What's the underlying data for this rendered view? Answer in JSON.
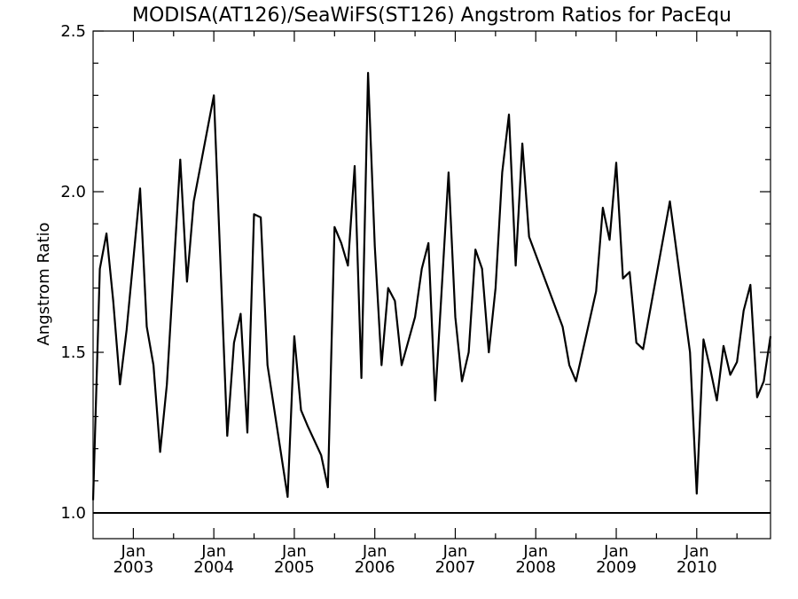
{
  "chart_data": {
    "type": "line",
    "title": "MODISA(AT126)/SeaWiFS(ST126)  Angstrom Ratios for PacEqu",
    "xlabel": "",
    "ylabel": "Angstrom Ratio",
    "ylim": [
      0.92,
      2.5
    ],
    "xlim": [
      "2002-07",
      "2010-12"
    ],
    "grid": false,
    "y_ticks": [
      "1.0",
      "1.5",
      "2.0",
      "2.5"
    ],
    "x_ticks": [
      {
        "month": "Jan",
        "year": "2003",
        "date": "2003-01"
      },
      {
        "month": "Jan",
        "year": "2004",
        "date": "2004-01"
      },
      {
        "month": "Jan",
        "year": "2005",
        "date": "2005-01"
      },
      {
        "month": "Jan",
        "year": "2006",
        "date": "2006-01"
      },
      {
        "month": "Jan",
        "year": "2007",
        "date": "2007-01"
      },
      {
        "month": "Jan",
        "year": "2008",
        "date": "2008-01"
      },
      {
        "month": "Jan",
        "year": "2009",
        "date": "2009-01"
      },
      {
        "month": "Jan",
        "year": "2010",
        "date": "2010-01"
      }
    ],
    "reference_line": {
      "y": 1.0
    },
    "series": [
      {
        "points": [
          [
            "2002-07",
            1.04
          ],
          [
            "2002-08",
            1.76
          ],
          [
            "2002-09",
            1.87
          ],
          [
            "2002-10",
            1.66
          ],
          [
            "2002-11",
            1.4
          ],
          [
            "2002-12",
            1.57
          ],
          [
            "2003-02",
            2.01
          ],
          [
            "2003-03",
            1.58
          ],
          [
            "2003-04",
            1.46
          ],
          [
            "2003-05",
            1.19
          ],
          [
            "2003-06",
            1.4
          ],
          [
            "2003-08",
            2.1
          ],
          [
            "2003-09",
            1.72
          ],
          [
            "2003-10",
            1.97
          ],
          [
            "2004-01",
            2.3
          ],
          [
            "2004-03",
            1.24
          ],
          [
            "2004-04",
            1.53
          ],
          [
            "2004-05",
            1.62
          ],
          [
            "2004-06",
            1.25
          ],
          [
            "2004-07",
            1.93
          ],
          [
            "2004-08",
            1.92
          ],
          [
            "2004-09",
            1.46
          ],
          [
            "2004-12",
            1.05
          ],
          [
            "2005-01",
            1.55
          ],
          [
            "2005-02",
            1.32
          ],
          [
            "2005-03",
            1.27
          ],
          [
            "2005-05",
            1.18
          ],
          [
            "2005-06",
            1.08
          ],
          [
            "2005-07",
            1.89
          ],
          [
            "2005-08",
            1.84
          ],
          [
            "2005-09",
            1.77
          ],
          [
            "2005-10",
            2.08
          ],
          [
            "2005-11",
            1.42
          ],
          [
            "2005-12",
            2.37
          ],
          [
            "2006-01",
            1.83
          ],
          [
            "2006-02",
            1.46
          ],
          [
            "2006-03",
            1.7
          ],
          [
            "2006-04",
            1.66
          ],
          [
            "2006-05",
            1.46
          ],
          [
            "2006-07",
            1.61
          ],
          [
            "2006-08",
            1.76
          ],
          [
            "2006-09",
            1.84
          ],
          [
            "2006-10",
            1.35
          ],
          [
            "2006-12",
            2.06
          ],
          [
            "2007-01",
            1.61
          ],
          [
            "2007-02",
            1.41
          ],
          [
            "2007-03",
            1.5
          ],
          [
            "2007-04",
            1.82
          ],
          [
            "2007-05",
            1.76
          ],
          [
            "2007-06",
            1.5
          ],
          [
            "2007-07",
            1.7
          ],
          [
            "2007-08",
            2.06
          ],
          [
            "2007-09",
            2.24
          ],
          [
            "2007-10",
            1.77
          ],
          [
            "2007-11",
            2.15
          ],
          [
            "2007-12",
            1.86
          ],
          [
            "2008-05",
            1.58
          ],
          [
            "2008-06",
            1.46
          ],
          [
            "2008-07",
            1.41
          ],
          [
            "2008-10",
            1.69
          ],
          [
            "2008-11",
            1.95
          ],
          [
            "2008-12",
            1.85
          ],
          [
            "2009-01",
            2.09
          ],
          [
            "2009-02",
            1.73
          ],
          [
            "2009-03",
            1.75
          ],
          [
            "2009-04",
            1.53
          ],
          [
            "2009-05",
            1.51
          ],
          [
            "2009-09",
            1.97
          ],
          [
            "2009-12",
            1.5
          ],
          [
            "2010-01",
            1.06
          ],
          [
            "2010-02",
            1.54
          ],
          [
            "2010-03",
            1.45
          ],
          [
            "2010-04",
            1.35
          ],
          [
            "2010-05",
            1.52
          ],
          [
            "2010-06",
            1.43
          ],
          [
            "2010-07",
            1.47
          ],
          [
            "2010-08",
            1.63
          ],
          [
            "2010-09",
            1.71
          ],
          [
            "2010-10",
            1.36
          ],
          [
            "2010-11",
            1.41
          ],
          [
            "2010-12",
            1.55
          ]
        ]
      }
    ]
  }
}
